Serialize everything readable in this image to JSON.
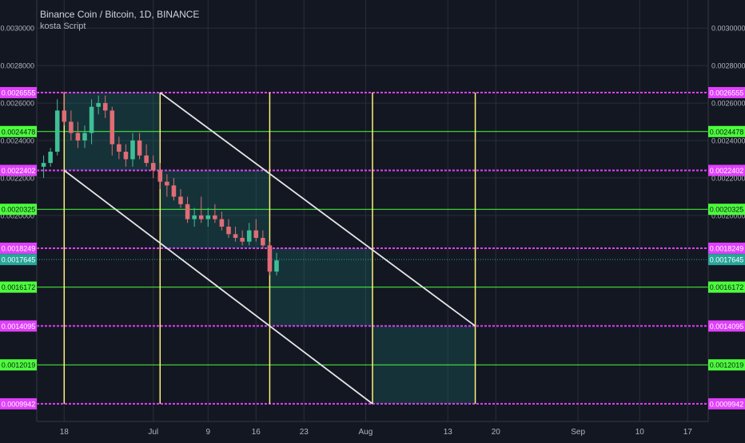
{
  "header": {
    "title": "Binance Coin / Bitcoin, 1D, BINANCE",
    "indicator": "kosta Script"
  },
  "colors": {
    "background": "#131722",
    "grid": "#2a2e39",
    "axis_text": "#b2b5be",
    "magenta": "#e040fb",
    "green": "#4cff3b",
    "yellow": "#fff176",
    "white_line": "#e6e6e6",
    "box_fill": "#1c6b6b",
    "up_candle": "#3fbf96",
    "down_candle": "#e06c75",
    "price_tag": "#26a69a",
    "label_text_dark": "#131722"
  },
  "chart_data": {
    "type": "candlestick",
    "title": "Binance Coin / Bitcoin, 1D, BINANCE",
    "ylim": [
      0.0009,
      0.00315
    ],
    "xlim": [
      "2018-06-14",
      "2018-09-20"
    ],
    "y_axis_ticks": [
      "0.0030000",
      "0.0028000",
      "0.0026000",
      "0.0024000",
      "0.0022000",
      "0.0020000"
    ],
    "x_axis_ticks": [
      {
        "label": "18",
        "date": "2018-06-18"
      },
      {
        "label": "Jul",
        "date": "2018-07-01"
      },
      {
        "label": "9",
        "date": "2018-07-09"
      },
      {
        "label": "16",
        "date": "2018-07-16"
      },
      {
        "label": "23",
        "date": "2018-07-23"
      },
      {
        "label": "Aug",
        "date": "2018-08-01"
      },
      {
        "label": "13",
        "date": "2018-08-13"
      },
      {
        "label": "20",
        "date": "2018-08-20"
      },
      {
        "label": "Sep",
        "date": "2018-09-01"
      },
      {
        "label": "10",
        "date": "2018-09-10"
      },
      {
        "label": "17",
        "date": "2018-09-17"
      }
    ],
    "last_price": {
      "label": "0.0017645",
      "value": 0.0017645
    },
    "horizontal_levels": [
      {
        "label": "0.0026555",
        "value": 0.0026555,
        "color": "magenta"
      },
      {
        "label": "0.0024478",
        "value": 0.0024478,
        "color": "green"
      },
      {
        "label": "0.0022402",
        "value": 0.0022402,
        "color": "magenta"
      },
      {
        "label": "0.0020325",
        "value": 0.0020325,
        "color": "green"
      },
      {
        "label": "0.0018249",
        "value": 0.0018249,
        "color": "magenta"
      },
      {
        "label": "0.0016172",
        "value": 0.0016172,
        "color": "green"
      },
      {
        "label": "0.0014095",
        "value": 0.0014095,
        "color": "magenta"
      },
      {
        "label": "0.0012019",
        "value": 0.0012019,
        "color": "green"
      },
      {
        "label": "0.0009942",
        "value": 0.0009942,
        "color": "magenta"
      }
    ],
    "vertical_lines": [
      "2018-06-18",
      "2018-07-02",
      "2018-07-18",
      "2018-08-02",
      "2018-08-17"
    ],
    "shaded_boxes": [
      {
        "x0": "2018-06-18",
        "x1": "2018-07-02",
        "y0": 0.0022402,
        "y1": 0.0026555
      },
      {
        "x0": "2018-07-02",
        "x1": "2018-07-18",
        "y0": 0.0018249,
        "y1": 0.0022402
      },
      {
        "x0": "2018-07-18",
        "x1": "2018-08-02",
        "y0": 0.0014095,
        "y1": 0.0018249
      },
      {
        "x0": "2018-08-02",
        "x1": "2018-08-17",
        "y0": 0.0009942,
        "y1": 0.0014095
      }
    ],
    "diagonal_lines": [
      {
        "x0": "2018-07-02",
        "y0": 0.0026555,
        "x1": "2018-08-17",
        "y1": 0.0014095
      },
      {
        "x0": "2018-06-18",
        "y0": 0.0022402,
        "x1": "2018-08-02",
        "y1": 0.0009942
      }
    ],
    "candles": [
      {
        "date": "2018-06-15",
        "open": 0.00226,
        "high": 0.00232,
        "low": 0.0022,
        "close": 0.00228
      },
      {
        "date": "2018-06-16",
        "open": 0.00228,
        "high": 0.00236,
        "low": 0.00226,
        "close": 0.00234
      },
      {
        "date": "2018-06-17",
        "open": 0.00234,
        "high": 0.00262,
        "low": 0.00232,
        "close": 0.00256
      },
      {
        "date": "2018-06-18",
        "open": 0.00256,
        "high": 0.00266,
        "low": 0.00248,
        "close": 0.0025
      },
      {
        "date": "2018-06-19",
        "open": 0.0025,
        "high": 0.00256,
        "low": 0.0024,
        "close": 0.00244
      },
      {
        "date": "2018-06-20",
        "open": 0.00244,
        "high": 0.0025,
        "low": 0.00236,
        "close": 0.0024
      },
      {
        "date": "2018-06-21",
        "open": 0.0024,
        "high": 0.00248,
        "low": 0.00236,
        "close": 0.00244
      },
      {
        "date": "2018-06-22",
        "open": 0.00244,
        "high": 0.00262,
        "low": 0.00238,
        "close": 0.00258
      },
      {
        "date": "2018-06-23",
        "open": 0.00258,
        "high": 0.00264,
        "low": 0.00254,
        "close": 0.0026
      },
      {
        "date": "2018-06-24",
        "open": 0.0026,
        "high": 0.00264,
        "low": 0.00252,
        "close": 0.00256
      },
      {
        "date": "2018-06-25",
        "open": 0.00256,
        "high": 0.00258,
        "low": 0.00232,
        "close": 0.00238
      },
      {
        "date": "2018-06-26",
        "open": 0.00238,
        "high": 0.00242,
        "low": 0.0023,
        "close": 0.00234
      },
      {
        "date": "2018-06-27",
        "open": 0.00234,
        "high": 0.00238,
        "low": 0.00226,
        "close": 0.0023
      },
      {
        "date": "2018-06-28",
        "open": 0.0023,
        "high": 0.00244,
        "low": 0.00226,
        "close": 0.0024
      },
      {
        "date": "2018-06-29",
        "open": 0.0024,
        "high": 0.00244,
        "low": 0.0023,
        "close": 0.00232
      },
      {
        "date": "2018-06-30",
        "open": 0.00232,
        "high": 0.00238,
        "low": 0.00226,
        "close": 0.00228
      },
      {
        "date": "2018-07-01",
        "open": 0.00228,
        "high": 0.00232,
        "low": 0.0022,
        "close": 0.00224
      },
      {
        "date": "2018-07-02",
        "open": 0.00224,
        "high": 0.00228,
        "low": 0.00214,
        "close": 0.00218
      },
      {
        "date": "2018-07-03",
        "open": 0.00218,
        "high": 0.00222,
        "low": 0.0021,
        "close": 0.00216
      },
      {
        "date": "2018-07-04",
        "open": 0.00216,
        "high": 0.0022,
        "low": 0.00208,
        "close": 0.0021
      },
      {
        "date": "2018-07-05",
        "open": 0.0021,
        "high": 0.00214,
        "low": 0.00204,
        "close": 0.00206
      },
      {
        "date": "2018-07-06",
        "open": 0.00206,
        "high": 0.0021,
        "low": 0.00196,
        "close": 0.00198
      },
      {
        "date": "2018-07-07",
        "open": 0.00198,
        "high": 0.00204,
        "low": 0.00194,
        "close": 0.002
      },
      {
        "date": "2018-07-08",
        "open": 0.002,
        "high": 0.0021,
        "low": 0.00196,
        "close": 0.00198
      },
      {
        "date": "2018-07-09",
        "open": 0.00198,
        "high": 0.00204,
        "low": 0.00194,
        "close": 0.002
      },
      {
        "date": "2018-07-10",
        "open": 0.002,
        "high": 0.00206,
        "low": 0.00196,
        "close": 0.00198
      },
      {
        "date": "2018-07-11",
        "open": 0.00198,
        "high": 0.00202,
        "low": 0.00192,
        "close": 0.00194
      },
      {
        "date": "2018-07-12",
        "open": 0.00194,
        "high": 0.00198,
        "low": 0.00188,
        "close": 0.0019
      },
      {
        "date": "2018-07-13",
        "open": 0.0019,
        "high": 0.00194,
        "low": 0.00186,
        "close": 0.00188
      },
      {
        "date": "2018-07-14",
        "open": 0.00188,
        "high": 0.00192,
        "low": 0.00184,
        "close": 0.00186
      },
      {
        "date": "2018-07-15",
        "open": 0.00186,
        "high": 0.00196,
        "low": 0.00184,
        "close": 0.00192
      },
      {
        "date": "2018-07-16",
        "open": 0.00192,
        "high": 0.00198,
        "low": 0.00186,
        "close": 0.00188
      },
      {
        "date": "2018-07-17",
        "open": 0.00188,
        "high": 0.00192,
        "low": 0.00182,
        "close": 0.00184
      },
      {
        "date": "2018-07-18",
        "open": 0.00184,
        "high": 0.00186,
        "low": 0.00168,
        "close": 0.0017
      },
      {
        "date": "2018-07-19",
        "open": 0.0017,
        "high": 0.0018,
        "low": 0.00168,
        "close": 0.00176
      }
    ]
  }
}
